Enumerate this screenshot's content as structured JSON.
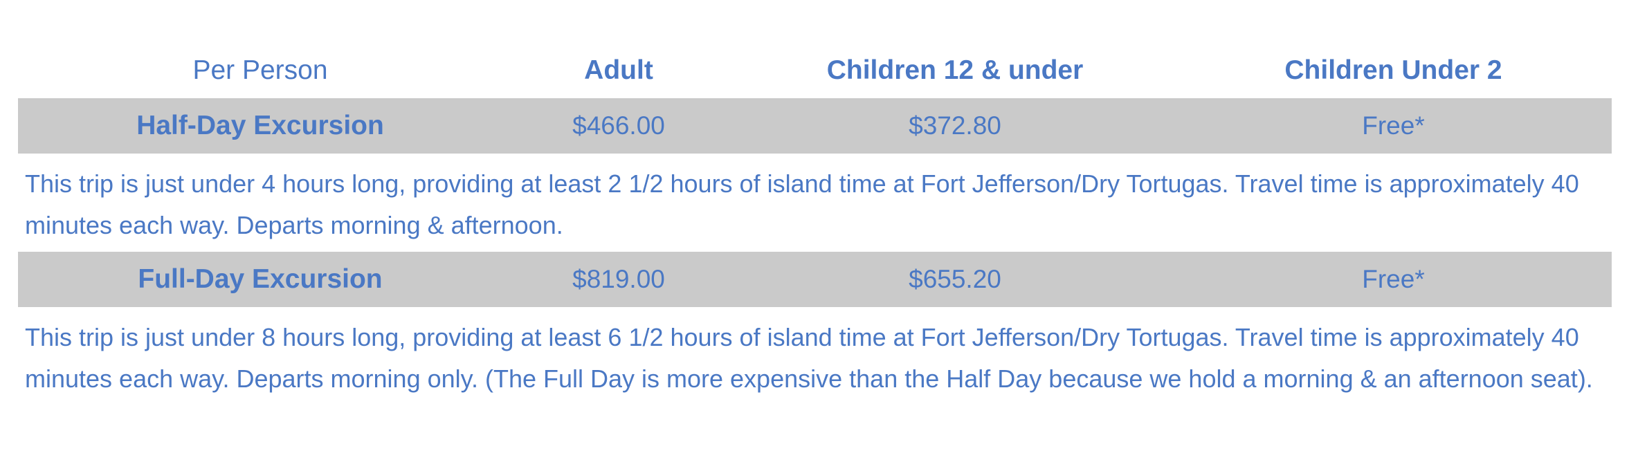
{
  "table": {
    "headers": {
      "per_person": "Per Person",
      "adult": "Adult",
      "children_12_under": "Children 12 & under",
      "children_under_2": "Children Under 2"
    },
    "excursions": [
      {
        "name": "Half-Day Excursion",
        "adult_price": "$466.00",
        "child_price": "$372.80",
        "infant_price": "Free*",
        "description": "This trip is just under 4 hours long, providing at least 2 1/2 hours of island time at Fort Jefferson/Dry Tortugas. Travel time is approximately 40 minutes each way. Departs morning & afternoon."
      },
      {
        "name": "Full-Day Excursion",
        "adult_price": "$819.00",
        "child_price": "$655.20",
        "infant_price": "Free*",
        "description": "This trip is just under 8 hours long, providing at least 6 1/2 hours of island time at Fort Jefferson/Dry Tortugas. Travel time is approximately 40 minutes each way. Departs morning only. (The Full Day is more expensive than the Half Day because we hold a morning & an afternoon seat)."
      }
    ]
  },
  "colors": {
    "text": "#4a78c4",
    "row_background": "#cacaca",
    "page_background": "#ffffff"
  }
}
